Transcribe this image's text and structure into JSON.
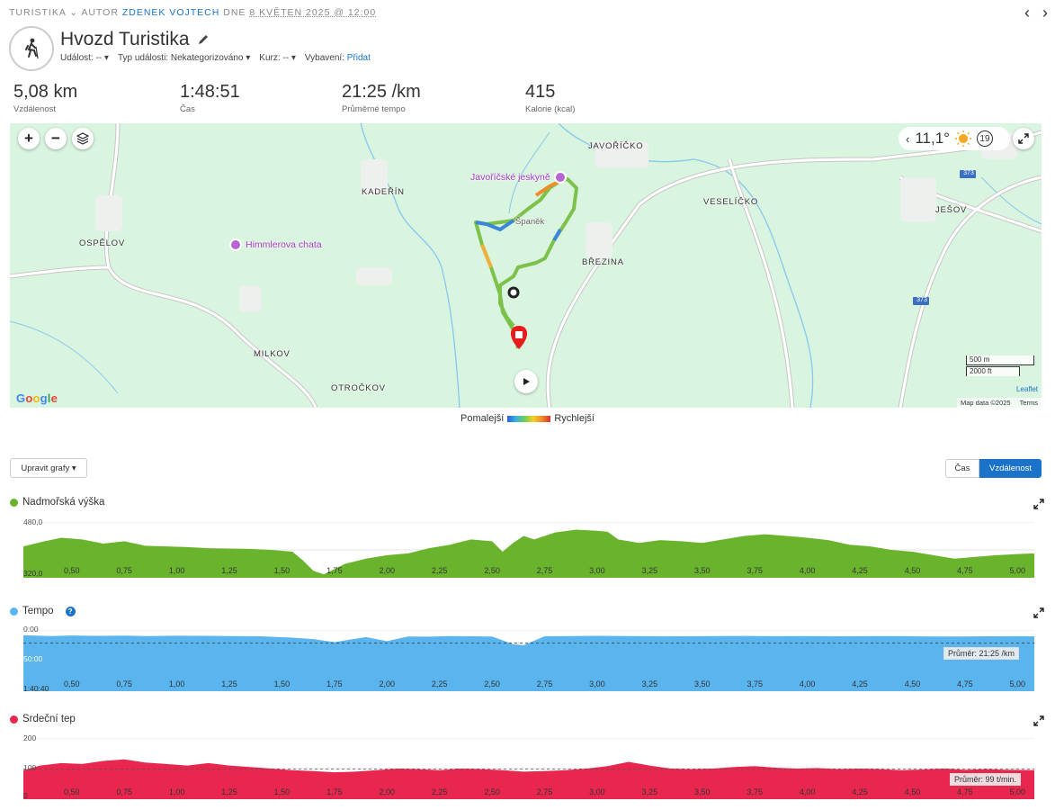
{
  "breadcrumb": {
    "category": "TURISTIKA",
    "by": "AUTOR",
    "author": "ZDENEK VOJTECH",
    "on": "DNE",
    "date": "8 KVĚTEN 2025 @ 12:00"
  },
  "title": "Hvozd Turistika",
  "meta": {
    "event": "Událost: --",
    "event_type": "Typ události: Nekategorizováno",
    "course": "Kurz: --",
    "gear_label": "Vybavení:",
    "gear_add": "Přidat"
  },
  "stats": [
    {
      "value": "5,08 km",
      "label": "Vzdálenost"
    },
    {
      "value": "1:48:51",
      "label": "Čas"
    },
    {
      "value": "21:25 /km",
      "label": "Průměrné tempo"
    },
    {
      "value": "415",
      "label": "Kalorie (kcal)"
    }
  ],
  "map": {
    "places": [
      "JAVOŘÍČKO",
      "KADEŘÍN",
      "VESELÍČKO",
      "JEŠOV",
      "OSPĚLOV",
      "BŘEZINA",
      "MILKOV",
      "OTROČKOV",
      "Španěk"
    ],
    "pois": [
      "Javoříčské jeskyně",
      "Himmlerova chata"
    ],
    "roads": [
      "373",
      "373"
    ],
    "temperature": "11,1°",
    "wind": "19",
    "scale_m": "500 m",
    "scale_ft": "2000 ft",
    "leaflet": "Leaflet",
    "map_data": "Map data ©2025",
    "terms": "Terms",
    "google": [
      "G",
      "o",
      "o",
      "g",
      "l",
      "e"
    ],
    "zoom_in": "+",
    "zoom_out": "−"
  },
  "legend": {
    "slower": "Pomalejší",
    "faster": "Rychlejší"
  },
  "controls": {
    "edit_charts": "Upravit grafy ▾",
    "time": "Čas",
    "distance": "Vzdálenost"
  },
  "charts": {
    "x_ticks": [
      "0,50",
      "0,75",
      "1,00",
      "1,25",
      "1,50",
      "1,75",
      "2,00",
      "2,25",
      "2,50",
      "2,75",
      "3,00",
      "3,25",
      "3,50",
      "3,75",
      "4,00",
      "4,25",
      "4,50",
      "4,75",
      "5,00"
    ],
    "elevation": {
      "title": "Nadmořská výška",
      "ymax": "480,0",
      "ymin": "320,0",
      "color": "#6ab42d"
    },
    "pace": {
      "title": "Tempo",
      "y0": "0:00",
      "y1": "50:00",
      "y2": "1:40:40",
      "avg": "Průměr: 21:25 /km",
      "color": "#5ab4ee"
    },
    "heart": {
      "title": "Srdeční tep",
      "y200": "200",
      "y100": "100",
      "y0": "0",
      "avg": "Průměr: 99 t/min.",
      "color": "#e8264e"
    }
  },
  "chart_data": [
    {
      "type": "area",
      "title": "Nadmořská výška",
      "xlabel": "",
      "ylabel": "",
      "xlim": [
        0.27,
        5.08
      ],
      "ylim": [
        320,
        480
      ],
      "x": [
        0.27,
        0.35,
        0.45,
        0.55,
        0.65,
        0.75,
        0.85,
        0.95,
        1.05,
        1.15,
        1.25,
        1.35,
        1.45,
        1.55,
        1.6,
        1.65,
        1.7,
        1.75,
        1.8,
        1.9,
        2.0,
        2.1,
        2.2,
        2.3,
        2.4,
        2.5,
        2.55,
        2.6,
        2.65,
        2.7,
        2.8,
        2.9,
        3.0,
        3.05,
        3.1,
        3.2,
        3.3,
        3.4,
        3.5,
        3.6,
        3.7,
        3.8,
        3.9,
        4.0,
        4.1,
        4.2,
        4.3,
        4.4,
        4.5,
        4.6,
        4.7,
        4.8,
        4.9,
        5.0,
        5.08
      ],
      "y": [
        410,
        422,
        435,
        430,
        418,
        425,
        412,
        410,
        408,
        405,
        404,
        403,
        400,
        395,
        370,
        340,
        330,
        345,
        360,
        375,
        385,
        390,
        405,
        415,
        430,
        425,
        395,
        420,
        440,
        430,
        450,
        458,
        455,
        452,
        430,
        420,
        428,
        425,
        420,
        430,
        440,
        445,
        440,
        435,
        428,
        415,
        410,
        400,
        395,
        385,
        375,
        380,
        385,
        388,
        390
      ]
    },
    {
      "type": "area",
      "title": "Tempo",
      "xlabel": "",
      "ylabel": "",
      "xlim": [
        0.27,
        5.08
      ],
      "ylim": [
        6040,
        0
      ],
      "x": [
        0.27,
        0.4,
        0.5,
        0.6,
        0.75,
        0.85,
        1.0,
        1.15,
        1.25,
        1.4,
        1.55,
        1.65,
        1.75,
        1.9,
        2.0,
        2.1,
        2.2,
        2.3,
        2.4,
        2.5,
        2.6,
        2.65,
        2.75,
        2.85,
        3.0,
        3.15,
        3.25,
        3.4,
        3.55,
        3.7,
        3.85,
        4.0,
        4.15,
        4.25,
        4.4,
        4.55,
        4.7,
        4.85,
        5.0,
        5.08
      ],
      "y": [
        520,
        600,
        540,
        580,
        560,
        600,
        570,
        580,
        600,
        620,
        760,
        900,
        1200,
        700,
        1100,
        640,
        660,
        600,
        620,
        640,
        1400,
        1500,
        620,
        600,
        580,
        600,
        610,
        620,
        600,
        590,
        610,
        600,
        620,
        610,
        600,
        630,
        640,
        620,
        610,
        620
      ]
    },
    {
      "type": "area",
      "title": "Srdeční tep",
      "xlabel": "",
      "ylabel": "",
      "xlim": [
        0.27,
        5.08
      ],
      "ylim": [
        0,
        200
      ],
      "x": [
        0.27,
        0.35,
        0.45,
        0.55,
        0.65,
        0.75,
        0.85,
        0.95,
        1.05,
        1.15,
        1.25,
        1.35,
        1.45,
        1.55,
        1.65,
        1.75,
        1.85,
        1.95,
        2.05,
        2.15,
        2.25,
        2.35,
        2.45,
        2.55,
        2.65,
        2.75,
        2.85,
        2.95,
        3.05,
        3.15,
        3.25,
        3.35,
        3.45,
        3.55,
        3.65,
        3.75,
        3.85,
        3.95,
        4.05,
        4.15,
        4.25,
        4.35,
        4.45,
        4.55,
        4.65,
        4.75,
        4.85,
        4.95,
        5.08
      ],
      "y": [
        95,
        110,
        118,
        115,
        125,
        130,
        120,
        115,
        110,
        118,
        110,
        105,
        100,
        95,
        92,
        88,
        90,
        95,
        100,
        98,
        95,
        100,
        98,
        95,
        90,
        92,
        95,
        100,
        108,
        122,
        110,
        100,
        98,
        100,
        105,
        108,
        103,
        100,
        102,
        98,
        100,
        98,
        95,
        97,
        100,
        96,
        98,
        96,
        95
      ]
    }
  ]
}
